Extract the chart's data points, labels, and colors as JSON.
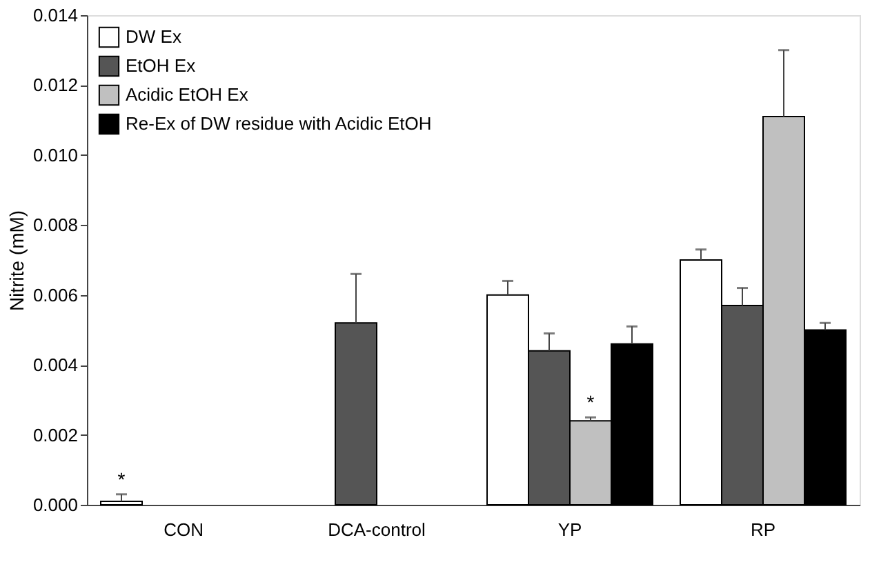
{
  "chart_data": {
    "type": "bar",
    "ylabel": "Nitrite (mM)",
    "categories": [
      "CON",
      "DCA-control",
      "YP",
      "RP"
    ],
    "series": [
      {
        "name": "DW  Ex",
        "color": "#ffffff",
        "values": [
          0.0001,
          null,
          0.006,
          0.007
        ],
        "errors": [
          [
            0.0001,
            0.0003
          ],
          null,
          [
            0.006,
            0.0064
          ],
          [
            0.007,
            0.0073
          ]
        ],
        "value_labels": [
          "*",
          null,
          null,
          null
        ]
      },
      {
        "name": "EtOH  Ex",
        "color": "#555555",
        "values": [
          null,
          0.0052,
          0.0044,
          0.0057
        ],
        "errors": [
          null,
          [
            0.0052,
            0.0066
          ],
          [
            0.0044,
            0.0049
          ],
          [
            0.0057,
            0.0062
          ]
        ]
      },
      {
        "name": "Acidic  EtOH  Ex",
        "color": "#c0c0c0",
        "values": [
          null,
          null,
          0.0024,
          0.0111
        ],
        "errors": [
          null,
          null,
          [
            0.0024,
            0.0025
          ],
          [
            0.0111,
            0.013
          ]
        ],
        "value_labels": [
          null,
          null,
          "*",
          null
        ]
      },
      {
        "name": "Re-Ex  of  DW  residue  with  Acidic  EtOH",
        "color": "#000000",
        "values": [
          null,
          null,
          0.0046,
          0.005
        ],
        "errors": [
          null,
          null,
          [
            0.0046,
            0.0051
          ],
          [
            0.005,
            0.0052
          ]
        ]
      }
    ],
    "ylim": [
      0,
      0.014
    ],
    "yticks": [
      {
        "value": 0,
        "label": "0.000"
      },
      {
        "value": 0.002,
        "label": "0.002"
      },
      {
        "value": 0.004,
        "label": "0.004"
      },
      {
        "value": 0.006,
        "label": "0.006"
      },
      {
        "value": 0.008,
        "label": "0.008"
      },
      {
        "value": 0.01,
        "label": "0.010"
      },
      {
        "value": 0.012,
        "label": "0.012"
      },
      {
        "value": 0.014,
        "label": "0.014"
      }
    ],
    "grid": false,
    "legend": "top left"
  }
}
